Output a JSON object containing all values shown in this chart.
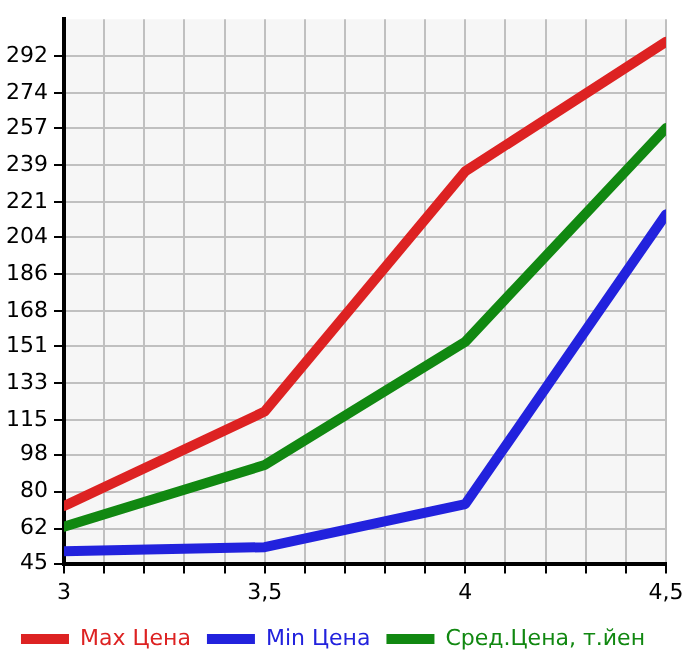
{
  "chart_data": {
    "type": "line",
    "x": [
      3,
      3.5,
      4,
      4.5
    ],
    "series": [
      {
        "name": "Max Цена",
        "color": "#dd2222",
        "values": [
          73,
          119,
          236,
          299
        ]
      },
      {
        "name": "Min Цена",
        "color": "#2222dd",
        "values": [
          51,
          53,
          74,
          215
        ]
      },
      {
        "name": "Сред.Цена, т.йен",
        "color": "#118811",
        "values": [
          63,
          93,
          153,
          257
        ]
      }
    ],
    "xlim": [
      3,
      4.5
    ],
    "xticks": [
      {
        "value": 3,
        "label": "3"
      },
      {
        "value": 3.1,
        "label": null
      },
      {
        "value": 3.2,
        "label": null
      },
      {
        "value": 3.3,
        "label": null
      },
      {
        "value": 3.4,
        "label": null
      },
      {
        "value": 3.5,
        "label": "3,5"
      },
      {
        "value": 3.6,
        "label": null
      },
      {
        "value": 3.7,
        "label": null
      },
      {
        "value": 3.8,
        "label": null
      },
      {
        "value": 3.9,
        "label": null
      },
      {
        "value": 4,
        "label": "4"
      },
      {
        "value": 4.1,
        "label": null
      },
      {
        "value": 4.2,
        "label": null
      },
      {
        "value": 4.3,
        "label": null
      },
      {
        "value": 4.4,
        "label": null
      },
      {
        "value": 4.5,
        "label": "4,5"
      }
    ],
    "ylim": [
      45,
      310
    ],
    "yticks": [
      45,
      62,
      80,
      98,
      115,
      133,
      151,
      168,
      186,
      204,
      221,
      239,
      257,
      274,
      292
    ],
    "grid": true,
    "legend": "bottom",
    "marker": "none",
    "line_style": "solid"
  }
}
